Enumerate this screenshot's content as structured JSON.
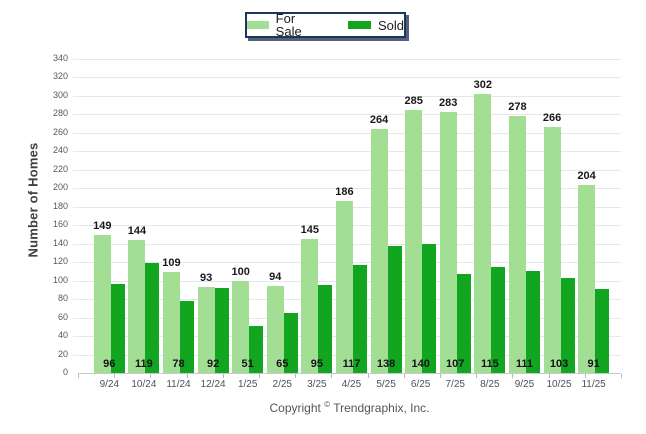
{
  "legend": {
    "items": [
      {
        "label": "For Sale",
        "color": "#A3DE95"
      },
      {
        "label": "Sold",
        "color": "#12A51F"
      }
    ]
  },
  "y_axis_title": "Number of Homes",
  "footer": {
    "copyright_prefix": "Copyright",
    "copyright_symbol": "©",
    "copyright_suffix": "Trendgraphix, Inc."
  },
  "chart_data": {
    "type": "bar",
    "title": "",
    "categories": [
      "9/24",
      "10/24",
      "11/24",
      "12/24",
      "1/25",
      "2/25",
      "3/25",
      "4/25",
      "5/25",
      "6/25",
      "7/25",
      "8/25",
      "9/25",
      "10/25",
      "11/25"
    ],
    "series": [
      {
        "name": "For Sale",
        "color": "#A3DE95",
        "values": [
          149,
          144,
          109,
          93,
          100,
          94,
          145,
          186,
          264,
          285,
          283,
          302,
          278,
          266,
          204
        ]
      },
      {
        "name": "Sold",
        "color": "#12A51F",
        "values": [
          96,
          119,
          78,
          92,
          51,
          65,
          95,
          117,
          138,
          140,
          107,
          115,
          111,
          103,
          91
        ]
      }
    ],
    "xlabel": "",
    "ylabel": "Number of Homes",
    "ylim": [
      0,
      340
    ],
    "ytick_step": 20,
    "grid": true,
    "legend_position": "top-center",
    "value_labels": {
      "for_sale": "above bars",
      "sold": "inside bottom of bars"
    }
  }
}
